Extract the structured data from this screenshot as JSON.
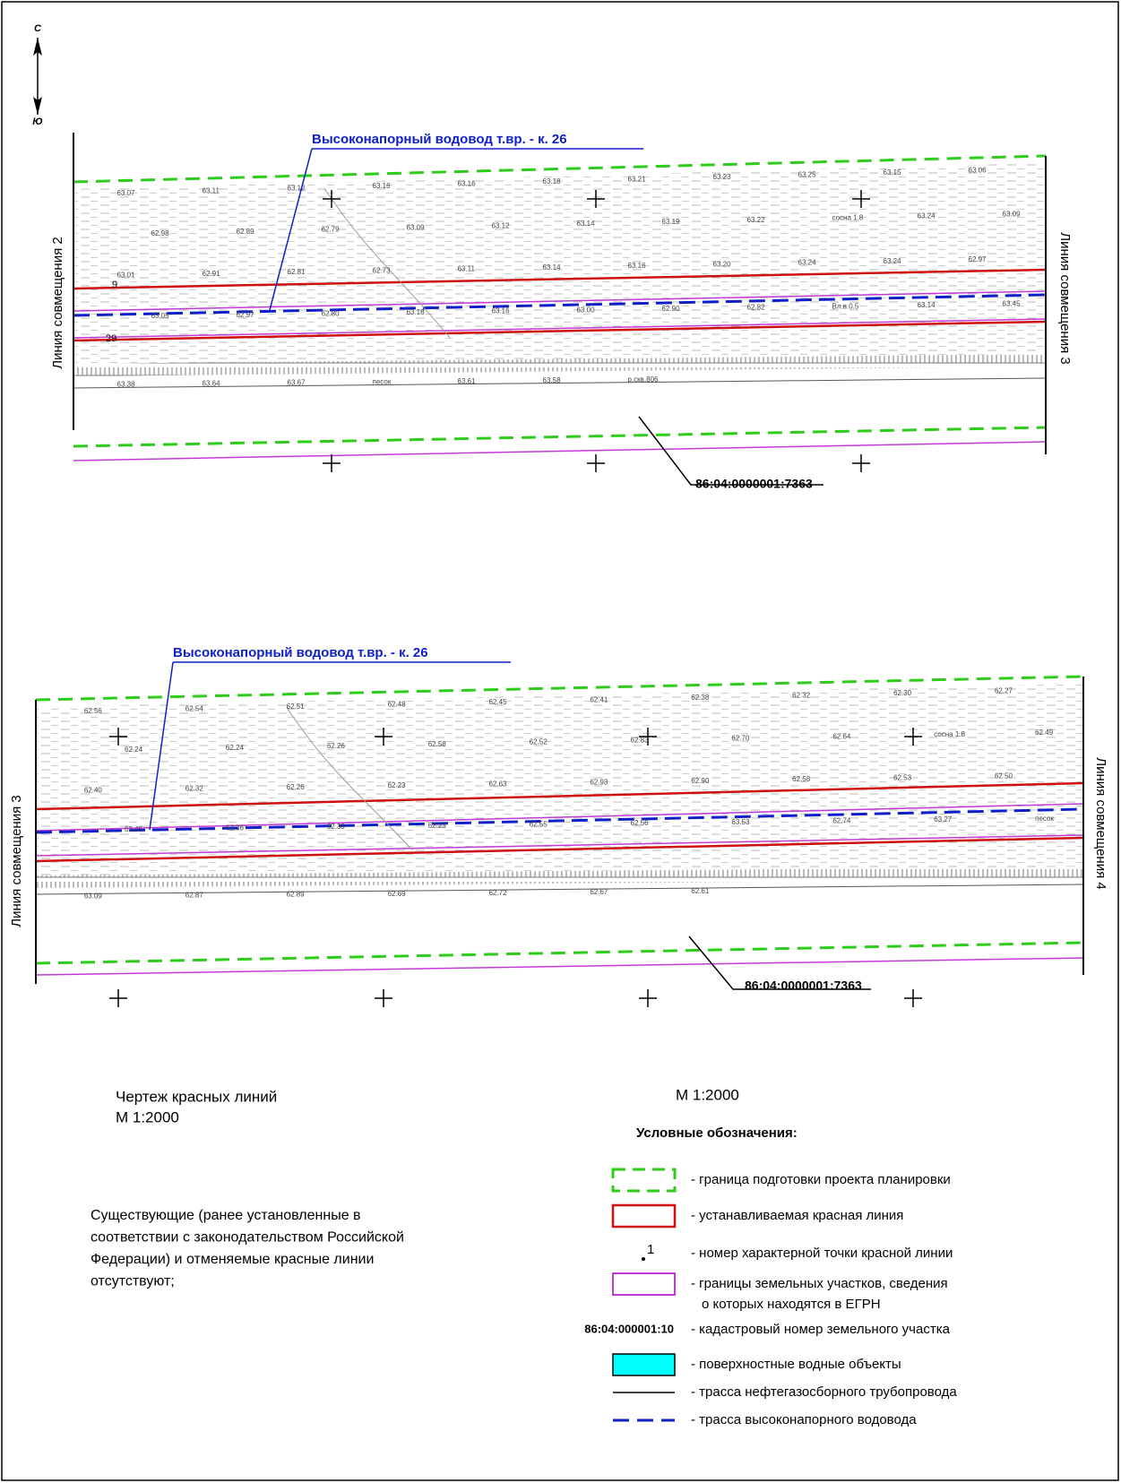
{
  "compass": {
    "north": "С",
    "south": "Ю"
  },
  "sheets": [
    {
      "side_left": "Линия совмещения 2",
      "side_right": "Линия совмещения 3",
      "pipeline_label": "Высоконапорный водовод т.вр. - к. 26",
      "cadastral_label": "86:04:0000001:7363",
      "points": [
        "9",
        "29"
      ],
      "elevations": [
        "63.07",
        "63.11",
        "63.12",
        "63.16",
        "63.16",
        "63.18",
        "63.21",
        "63.23",
        "63.25",
        "63.15",
        "63.06",
        "62.98",
        "62.89",
        "62.79",
        "63.09",
        "63.12",
        "63.14",
        "63.19",
        "63.22",
        "сосна 1.8",
        "63.24",
        "63.09",
        "63.01",
        "62.91",
        "62.81",
        "62.73",
        "63.11",
        "63.14",
        "63.16",
        "63.20",
        "63.24",
        "63.24",
        "62.97",
        "63.05",
        "62.97",
        "62.80",
        "63.18",
        "63.16",
        "63.00",
        "62.90",
        "62.82",
        "Вл.в.0.5",
        "63.14",
        "63.45",
        "63.38",
        "63.64",
        "63.67",
        "песок",
        "63.61",
        "63.58",
        "р.скв.806"
      ]
    },
    {
      "side_left": "Линия совмещения 3",
      "side_right": "Линия совмещения 4",
      "pipeline_label": "Высоконапорный водовод т.вр. - к. 26",
      "cadastral_label": "86:04:0000001:7363",
      "points": [],
      "elevations": [
        "62.56",
        "62.54",
        "62.51",
        "62.48",
        "62.45",
        "62.41",
        "62.38",
        "62.32",
        "62.30",
        "62.27",
        "62.24",
        "62.24",
        "62.26",
        "62.58",
        "62.52",
        "62.83",
        "62.70",
        "62.64",
        "сосна 1.8",
        "62.49",
        "62.40",
        "62.32",
        "62.26",
        "62.23",
        "62.63",
        "62.93",
        "62.90",
        "62.58",
        "62.53",
        "62.50",
        "62.45",
        "62.36",
        "62.30",
        "62.23",
        "62.55",
        "62.56",
        "63.53",
        "62.74",
        "63.27",
        "песок",
        "63.09",
        "62.87",
        "62.89",
        "62.69",
        "62.72",
        "62.67",
        "62.61"
      ]
    }
  ],
  "caption": {
    "title": "Чертеж красных линий",
    "scale": "М 1:2000"
  },
  "scale_right": "М 1:2000",
  "note": [
    "Существующие (ранее установленные в",
    "соответствии с законодательством Российской",
    "Федерации) и отменяемые красные линии",
    "отсутствуют;"
  ],
  "legend": {
    "title": "Условные обозначения:",
    "items": [
      {
        "lines": [
          "- граница подготовки проекта планировки"
        ]
      },
      {
        "lines": [
          "- устанавливаемая красная линия"
        ]
      },
      {
        "sample": "1",
        "lines": [
          "- номер характерной точки красной линии"
        ]
      },
      {
        "lines": [
          "- границы земельных участков, сведения",
          "о которых находятся в ЕГРН"
        ]
      },
      {
        "sample": "86:04:000001:10",
        "lines": [
          "- кадастровый номер земельного участка"
        ]
      },
      {
        "lines": [
          "- поверхностные водные объекты"
        ]
      },
      {
        "lines": [
          "- трасса нефтегазосборного трубопровода"
        ]
      },
      {
        "lines": [
          "- трасса высоконапорного водовода"
        ]
      }
    ]
  }
}
